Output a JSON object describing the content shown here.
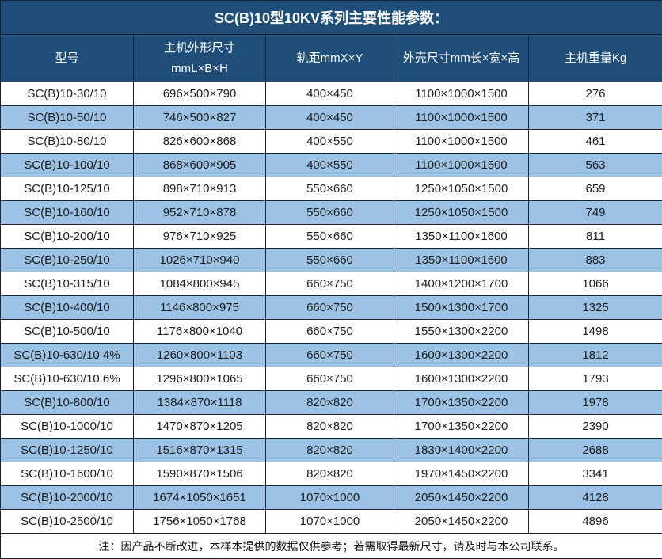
{
  "chart_data": {
    "type": "table",
    "title": "SC(B)10型10KV系列主要性能参数：",
    "columns": [
      "型号",
      "主机外形尺寸\nmmL×B×H",
      "轨距mmX×Y",
      "外壳尺寸mm长×宽×高",
      "主机重量Kg"
    ],
    "rows": [
      [
        "SC(B)10-30/10",
        "696×500×790",
        "400×450",
        "1100×1000×1500",
        "276"
      ],
      [
        "SC(B)10-50/10",
        "746×500×827",
        "400×450",
        "1100×1000×1500",
        "371"
      ],
      [
        "SC(B)10-80/10",
        "826×600×868",
        "400×550",
        "1100×1000×1500",
        "461"
      ],
      [
        "SC(B)10-100/10",
        "868×600×905",
        "400×550",
        "1100×1000×1500",
        "563"
      ],
      [
        "SC(B)10-125/10",
        "898×710×913",
        "550×660",
        "1250×1050×1500",
        "659"
      ],
      [
        "SC(B)10-160/10",
        "952×710×878",
        "550×660",
        "1250×1050×1500",
        "749"
      ],
      [
        "SC(B)10-200/10",
        "976×710×925",
        "550×660",
        "1350×1100×1600",
        "811"
      ],
      [
        "SC(B)10-250/10",
        "1026×710×940",
        "550×660",
        "1350×1100×1600",
        "883"
      ],
      [
        "SC(B)10-315/10",
        "1084×800×945",
        "660×750",
        "1400×1200×1700",
        "1066"
      ],
      [
        "SC(B)10-400/10",
        "1146×800×975",
        "660×750",
        "1500×1300×1700",
        "1325"
      ],
      [
        "SC(B)10-500/10",
        "1176×800×1040",
        "660×750",
        "1550×1300×2200",
        "1498"
      ],
      [
        "SC(B)10-630/10 4%",
        "1260×800×1103",
        "660×750",
        "1600×1300×2200",
        "1812"
      ],
      [
        "SC(B)10-630/10 6%",
        "1296×800×1065",
        "660×750",
        "1600×1300×2200",
        "1793"
      ],
      [
        "SC(B)10-800/10",
        "1384×870×1118",
        "820×820",
        "1700×1350×2200",
        "1978"
      ],
      [
        "SC(B)10-1000/10",
        "1470×870×1205",
        "820×820",
        "1700×1350×2200",
        "2390"
      ],
      [
        "SC(B)10-1250/10",
        "1516×870×1315",
        "820×820",
        "1830×1400×2200",
        "2688"
      ],
      [
        "SC(B)10-1600/10",
        "1590×870×1506",
        "820×820",
        "1970×1450×2200",
        "3341"
      ],
      [
        "SC(B)10-2000/10",
        "1674×1050×1651",
        "1070×1000",
        "2050×1450×2200",
        "4128"
      ],
      [
        "SC(B)10-2500/10",
        "1756×1050×1768",
        "1070×1000",
        "2050×1450×2200",
        "4896"
      ]
    ],
    "note": "注：因产品不断改进，本样本提供的数据仅供参考；若需取得最新尺寸，请及时与本公司联系。",
    "layout": {
      "grid": true,
      "row_striping": "even rows light blue, odd rows white",
      "alignment": "center"
    },
    "colors": {
      "header_bg": "#1F4E79",
      "header_text": "#FFFFFF",
      "alt_row_bg": "#9CC2E5",
      "row_bg": "#FFFFFF",
      "body_text": "#1C1C1C",
      "border": "#1A2433"
    }
  }
}
